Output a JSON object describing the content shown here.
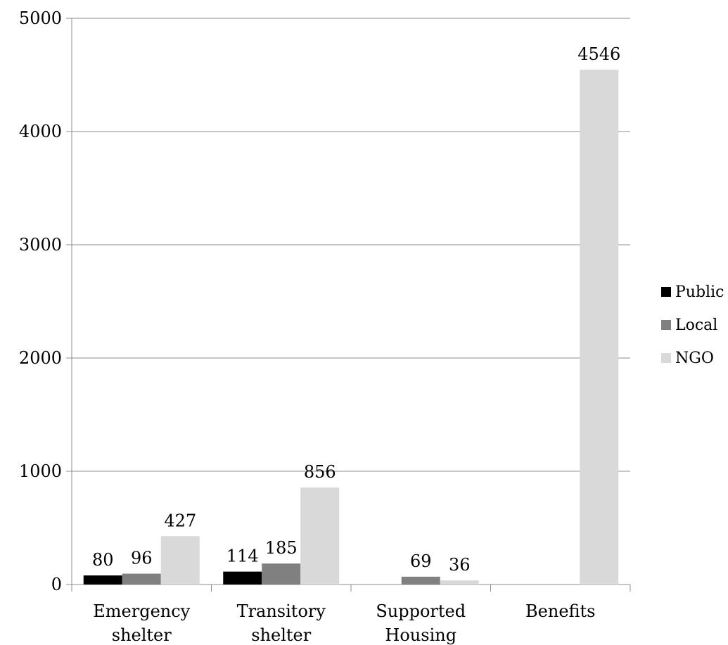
{
  "chart_data": {
    "type": "bar",
    "categories": [
      [
        "Emergency",
        "shelter"
      ],
      [
        "Transitory",
        "shelter"
      ],
      [
        "Supported",
        "Housing"
      ],
      [
        "Benefits"
      ]
    ],
    "series": [
      {
        "name": "Public",
        "color": "#000000",
        "values": [
          80,
          114,
          null,
          null
        ]
      },
      {
        "name": "Local",
        "color": "#808080",
        "values": [
          96,
          185,
          69,
          null
        ]
      },
      {
        "name": "NGO",
        "color": "#d9d9d9",
        "values": [
          427,
          856,
          36,
          4546
        ]
      }
    ],
    "ylim": [
      0,
      5000
    ],
    "yticks": [
      0,
      1000,
      2000,
      3000,
      4000,
      5000
    ],
    "grid": true,
    "legend": "right",
    "title": "",
    "xlabel": "",
    "ylabel": ""
  }
}
